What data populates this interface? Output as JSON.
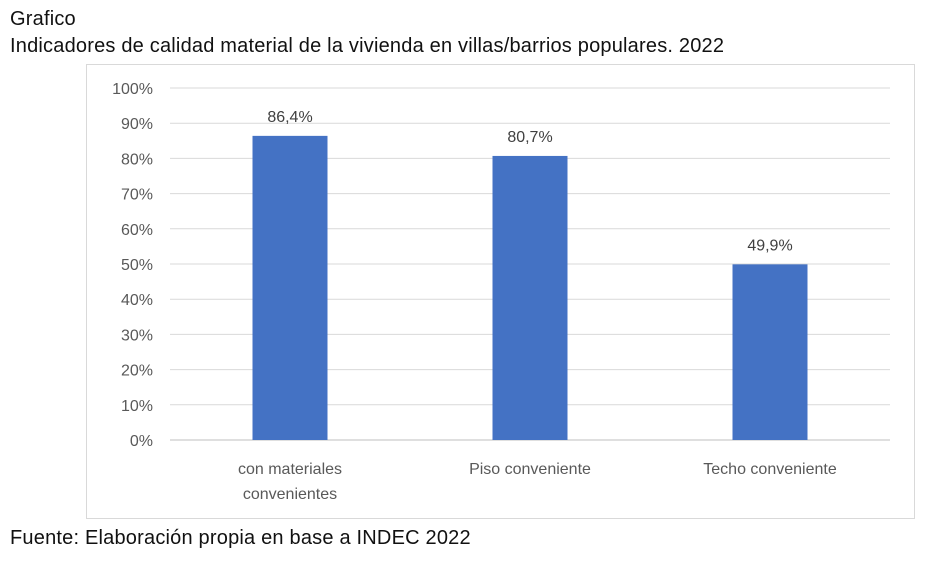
{
  "figure": {
    "label": "Grafico",
    "title": "Indicadores de calidad material de la vivienda en villas/barrios populares. 2022",
    "source": "Fuente: Elaboración propia en base a INDEC 2022"
  },
  "chart_data": {
    "type": "bar",
    "title": "",
    "xlabel": "",
    "ylabel": "",
    "categories": [
      [
        "con materiales",
        "convenientes"
      ],
      [
        "Piso conveniente"
      ],
      [
        "Techo conveniente"
      ]
    ],
    "values": [
      86.4,
      80.7,
      49.9
    ],
    "data_labels": [
      "86,4%",
      "80,7%",
      "49,9%"
    ],
    "y_ticks": [
      "0%",
      "10%",
      "20%",
      "30%",
      "40%",
      "50%",
      "60%",
      "70%",
      "80%",
      "90%",
      "100%"
    ],
    "ylim": [
      0,
      100
    ],
    "grid": true,
    "legend": "none",
    "colors": {
      "bar": "#4472C4",
      "grid": "#d9d9d9",
      "axis": "#bfbfbf"
    }
  }
}
